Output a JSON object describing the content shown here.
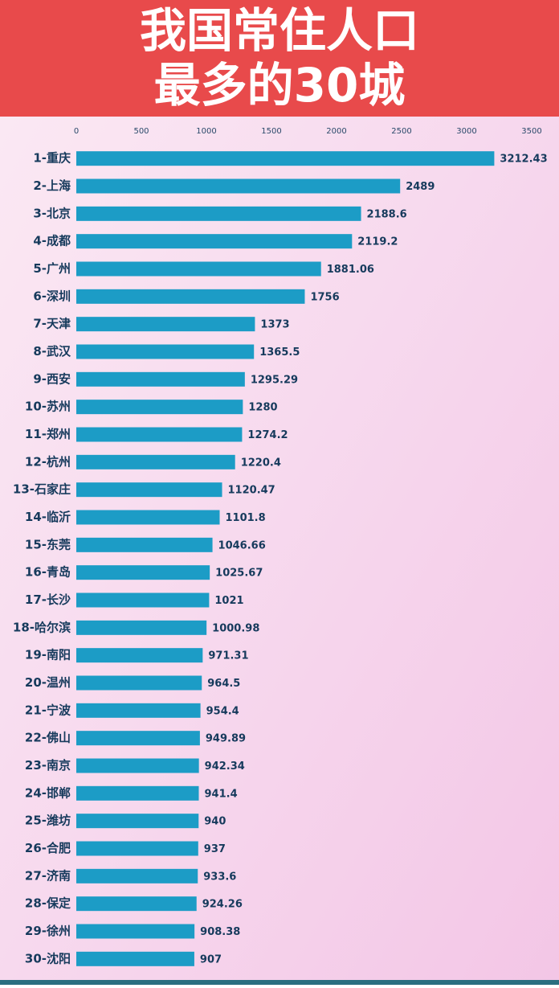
{
  "chart_data": {
    "type": "hbar",
    "title": [
      "我国常住人口",
      "最多的30城"
    ],
    "categories": [
      "1-重庆",
      "2-上海",
      "3-北京",
      "4-成都",
      "5-广州",
      "6-深圳",
      "7-天津",
      "8-武汉",
      "9-西安",
      "10-苏州",
      "11-郑州",
      "12-杭州",
      "13-石家庄",
      "14-临沂",
      "15-东莞",
      "16-青岛",
      "17-长沙",
      "18-哈尔滨",
      "19-南阳",
      "20-温州",
      "21-宁波",
      "22-佛山",
      "23-南京",
      "24-邯郸",
      "25-潍坊",
      "26-合肥",
      "27-济南",
      "28-保定",
      "29-徐州",
      "30-沈阳"
    ],
    "values": [
      3212.43,
      2489,
      2188.6,
      2119.2,
      1881.06,
      1756,
      1373,
      1365.5,
      1295.29,
      1280,
      1274.2,
      1220.4,
      1120.47,
      1101.8,
      1046.66,
      1025.67,
      1021,
      1000.98,
      971.31,
      964.5,
      954.4,
      949.89,
      942.34,
      941.4,
      940,
      937,
      933.6,
      924.26,
      908.38,
      907
    ],
    "color": "#1c9cc6",
    "xlim": [
      0,
      3500
    ],
    "xticks": [
      0,
      500,
      1000,
      1500,
      2000,
      2500,
      3000,
      3500
    ]
  }
}
